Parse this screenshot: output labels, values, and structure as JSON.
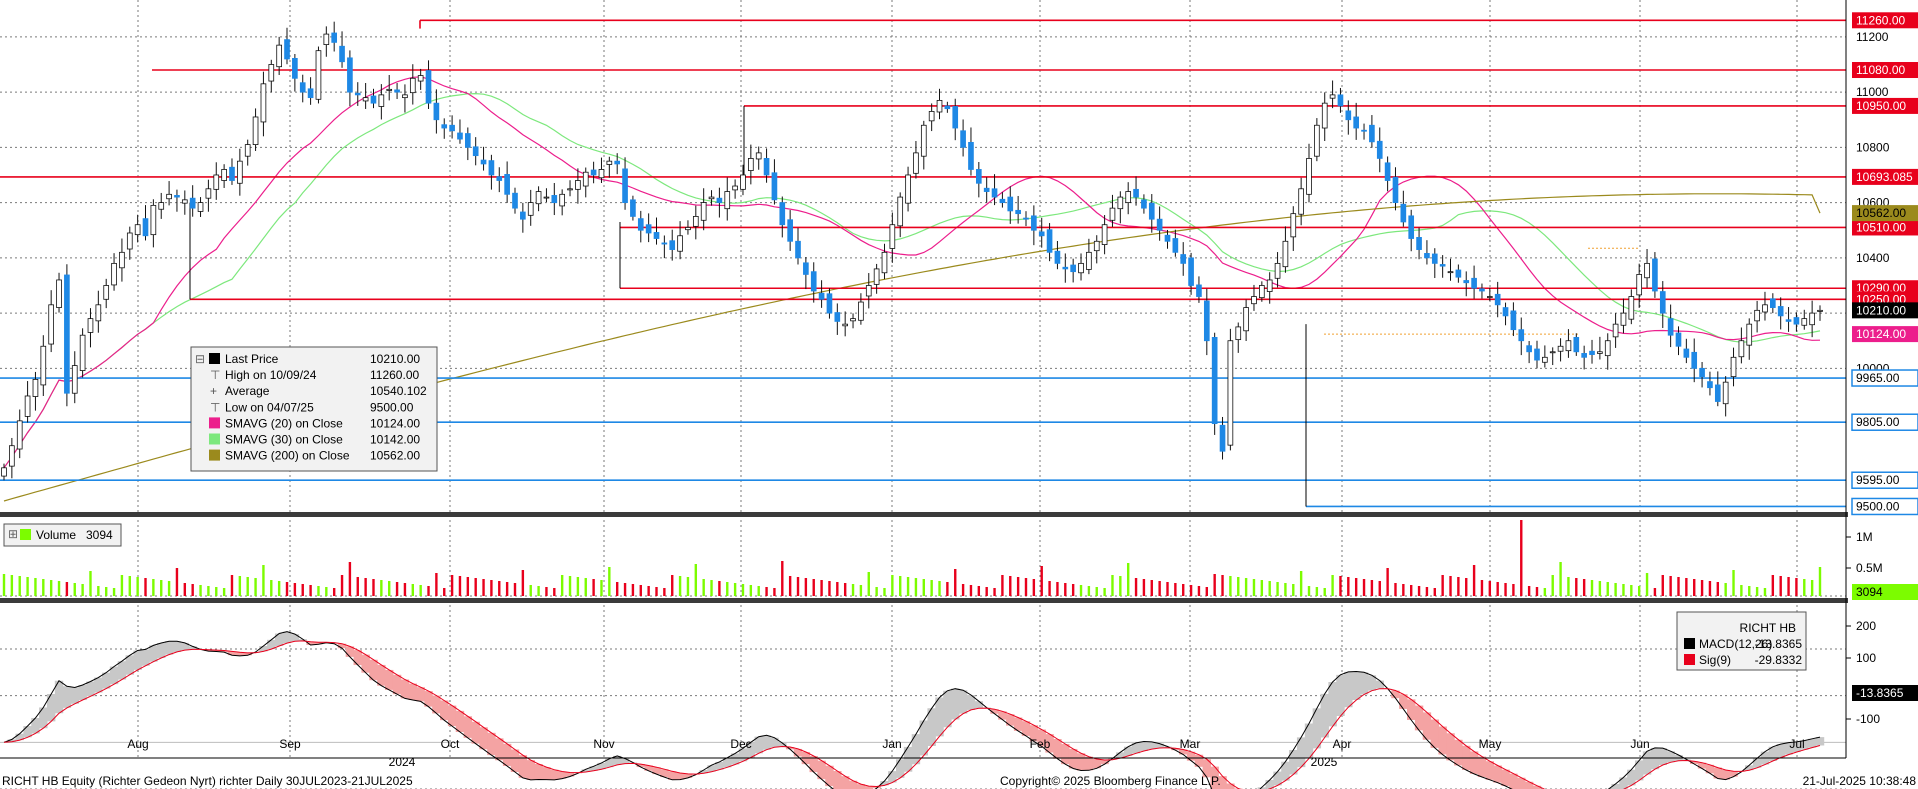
{
  "chart_data": {
    "type": "candlestick",
    "instrument": "RICHT HB",
    "x_ticks": {
      "months": [
        "Aug",
        "Sep",
        "Oct",
        "Nov",
        "Dec",
        "Jan",
        "Feb",
        "Mar",
        "Apr",
        "May",
        "Jun",
        "Jul"
      ],
      "years": [
        "2024",
        "2025"
      ]
    },
    "price_panel": {
      "y_ticks": [
        "11200",
        "11000",
        "10800",
        "10600",
        "10400",
        "10200",
        "10000"
      ],
      "y_range": [
        9480,
        11290
      ],
      "levels": [
        {
          "value": "11260.00",
          "type": "resistance",
          "color": "#e8001c"
        },
        {
          "value": "11080.00",
          "type": "resistance",
          "color": "#e8001c"
        },
        {
          "value": "10950.00",
          "type": "resistance",
          "color": "#e8001c"
        },
        {
          "value": "10693.085",
          "type": "resistance",
          "color": "#e8001c"
        },
        {
          "value": "10510.00",
          "type": "resistance",
          "color": "#e8001c"
        },
        {
          "value": "10290.00",
          "type": "resistance",
          "color": "#e8001c"
        },
        {
          "value": "10250.00",
          "type": "resistance",
          "color": "#e8001c"
        },
        {
          "value": "9965.00",
          "type": "support",
          "color": "#1e88e5"
        },
        {
          "value": "9805.00",
          "type": "support",
          "color": "#1e88e5"
        },
        {
          "value": "9595.00",
          "type": "support",
          "color": "#1e88e5"
        },
        {
          "value": "9500.00",
          "type": "support",
          "color": "#1e88e5"
        }
      ],
      "value_tags": [
        {
          "value": "10562.00",
          "color": "#9b8a1d"
        },
        {
          "value": "10210.00",
          "color": "#000000"
        },
        {
          "value": "10124.00",
          "color": "#ec1e8c"
        }
      ],
      "legend": [
        {
          "label": "Last Price",
          "value": "10210.00",
          "swatch": "#000000"
        },
        {
          "label": "High on 10/09/24",
          "value": "11260.00",
          "swatch": "none"
        },
        {
          "label": "Average",
          "value": "10540.102",
          "swatch": "none"
        },
        {
          "label": "Low on 04/07/25",
          "value": "9500.00",
          "swatch": "none"
        },
        {
          "label": "SMAVG (20)  on Close",
          "value": "10124.00",
          "swatch": "#ec1e8c"
        },
        {
          "label": "SMAVG (30)  on Close",
          "value": "10142.00",
          "swatch": "#7de87d"
        },
        {
          "label": "SMAVG (200)  on Close",
          "value": "10562.00",
          "swatch": "#9b8a1d"
        }
      ],
      "series": [
        {
          "name": "Last Price",
          "type": "candlestick",
          "close": [
            9640,
            9720,
            9810,
            9900,
            9960,
            10080,
            10230,
            10320,
            9910,
            10010,
            10120,
            10180,
            10230,
            10300,
            10380,
            10420,
            10490,
            10520,
            10480,
            10590,
            10600,
            10630,
            10620,
            10610,
            10580,
            10600,
            10650,
            10700,
            10720,
            10680,
            10750,
            10810,
            10910,
            11030,
            11100,
            11170,
            11120,
            11050,
            11000,
            10980,
            11150,
            11210,
            11180,
            11110,
            11000,
            10990,
            10980,
            10960,
            10990,
            11010,
            11000,
            10990,
            11050,
            11060,
            10960,
            10900,
            10870,
            10860,
            10830,
            10800,
            10770,
            10740,
            10700,
            10680,
            10630,
            10580,
            10540,
            10600,
            10640,
            10620,
            10600,
            10630,
            10650,
            10680,
            10710,
            10700,
            10720,
            10750,
            10740,
            10600,
            10550,
            10500,
            10490,
            10470,
            10450,
            10430,
            10480,
            10510,
            10550,
            10600,
            10620,
            10600,
            10640,
            10660,
            10700,
            10760,
            10780,
            10700,
            10610,
            10520,
            10460,
            10400,
            10340,
            10280,
            10250,
            10200,
            10170,
            10160,
            10180,
            10240,
            10300,
            10360,
            10420,
            10520,
            10620,
            10700,
            10780,
            10880,
            10930,
            10970,
            10940,
            10870,
            10800,
            10720,
            10670,
            10640,
            10620,
            10600,
            10570,
            10560,
            10540,
            10500,
            10480,
            10420,
            10380,
            10360,
            10350,
            10380,
            10420,
            10460,
            10520,
            10580,
            10620,
            10640,
            10620,
            10580,
            10540,
            10500,
            10460,
            10420,
            10380,
            10300,
            10260,
            10100,
            9800,
            9700,
            10100,
            10150,
            10220,
            10260,
            10300,
            10320,
            10380,
            10460,
            10560,
            10650,
            10760,
            10880,
            10960,
            10990,
            10950,
            10900,
            10870,
            10860,
            10820,
            10760,
            10680,
            10600,
            10530,
            10470,
            10430,
            10400,
            10380,
            10370,
            10350,
            10330,
            10310,
            10290,
            10280,
            10260,
            10230,
            10190,
            10140,
            10100,
            10060,
            10030,
            10040,
            10060,
            10080,
            10100,
            10060,
            10040,
            10050,
            10060,
            10100,
            10160,
            10200,
            10260,
            10340,
            10380,
            10280,
            10200,
            10120,
            10080,
            10040,
            10000,
            9970,
            9930,
            9880,
            9950,
            10040,
            10100,
            10160,
            10210,
            10230,
            10220,
            10190,
            10170,
            10160,
            10180,
            10200,
            10210
          ]
        },
        {
          "name": "SMAVG (20)",
          "type": "line",
          "color": "#ec1e8c"
        },
        {
          "name": "SMAVG (30)",
          "type": "line",
          "color": "#7de87d"
        },
        {
          "name": "SMAVG (200)",
          "type": "line",
          "color": "#9b8a1d"
        }
      ]
    },
    "volume_panel": {
      "legend": {
        "label": "Volume",
        "value": "3094",
        "swatch": "#7cfc00"
      },
      "y_ticks": [
        "1M",
        "0.5M"
      ],
      "value_tag": {
        "value": "3094",
        "color": "#7cfc00"
      }
    },
    "macd_panel": {
      "title": "RICHT HB",
      "y_ticks": [
        "200",
        "100",
        "-100"
      ],
      "legend": [
        {
          "label": "MACD(12,26)",
          "value": "-13.8365",
          "swatch": "#000000"
        },
        {
          "label": "Sig(9)",
          "value": "-29.8332",
          "swatch": "#e8001c"
        }
      ],
      "value_tag": {
        "value": "-13.8365",
        "color": "#000000"
      }
    }
  },
  "footer": {
    "left": "RICHT HB Equity (Richter Gedeon Nyrt) richter  Daily 30JUL2023-21JUL2025",
    "center": "Copyright© 2025 Bloomberg Finance L.P.",
    "right": "21-Jul-2025 10:38:48"
  }
}
